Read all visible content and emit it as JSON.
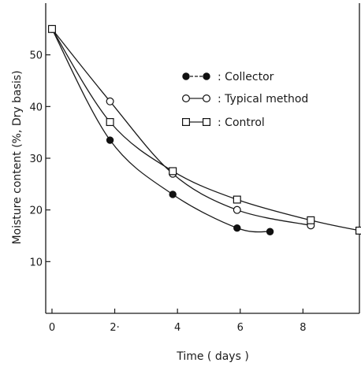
{
  "chart_data": {
    "type": "line",
    "title": "",
    "xlabel": "Time ( days )",
    "ylabel": "Moisture content (%, Dry basis)",
    "xlim": [
      -0.2,
      9.8
    ],
    "ylim": [
      0,
      60
    ],
    "xticks": [
      0,
      2,
      4,
      6,
      8
    ],
    "xtick_labels": [
      "0",
      "2·",
      "4",
      "6",
      "8"
    ],
    "yticks": [
      10,
      20,
      30,
      40,
      50
    ],
    "ytick_labels": [
      "10",
      "20",
      "30",
      "40",
      "50"
    ],
    "grid": false,
    "legend_position": "top-right",
    "series": [
      {
        "name": ": Collector",
        "marker": "filled-circle",
        "x": [
          0,
          1.85,
          3.85,
          5.9,
          6.95
        ],
        "y": [
          55,
          33.5,
          23,
          16.5,
          15.8
        ]
      },
      {
        "name": ": Typical method",
        "marker": "open-circle",
        "x": [
          0,
          1.85,
          3.85,
          5.9,
          8.25
        ],
        "y": [
          55,
          41,
          27,
          20,
          17
        ]
      },
      {
        "name": ": Control",
        "marker": "open-square",
        "x": [
          0,
          1.85,
          3.85,
          5.9,
          8.25,
          9.8
        ],
        "y": [
          55,
          37,
          27.5,
          22,
          18,
          16
        ]
      }
    ]
  }
}
